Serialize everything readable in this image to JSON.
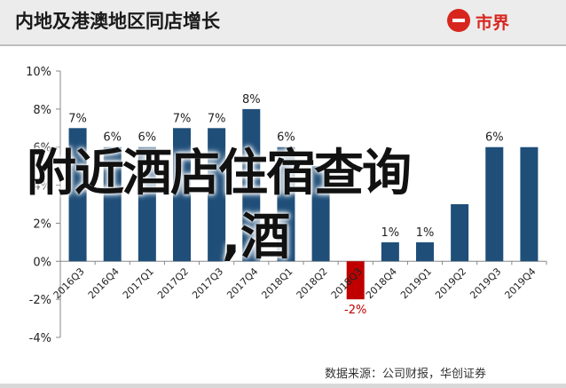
{
  "header": {
    "title": "内地及港澳地区同店增长",
    "brand": "市界"
  },
  "overlay": {
    "line1": "附近酒店住宿查询",
    "line2": ",酒"
  },
  "source": "数据来源：公司财报，华创证券",
  "colors": {
    "bar_positive": "#1f4e79",
    "bar_negative": "#c00000",
    "negative_label": "#c00000",
    "brand": "#d7261e"
  },
  "chart_data": {
    "type": "bar",
    "categories": [
      "2016Q3",
      "2016Q4",
      "2017Q1",
      "2017Q2",
      "2017Q3",
      "2017Q4",
      "2018Q1",
      "2018Q2",
      "2018Q3",
      "2018Q4",
      "2019Q1",
      "2019Q2",
      "2019Q3",
      "2019Q4"
    ],
    "values": [
      7,
      6,
      6,
      7,
      7,
      8,
      6,
      5,
      -2,
      1,
      1,
      3,
      6,
      6
    ],
    "data_labels": [
      "7%",
      "6%",
      "6%",
      "7%",
      "7%",
      "8%",
      "6%",
      "",
      "-2%",
      "1%",
      "1%",
      "",
      "6%",
      ""
    ],
    "y_ticks": [
      "10%",
      "8%",
      "6%",
      "4%",
      "2%",
      "0%",
      "-2%",
      "-4%"
    ],
    "ylim": [
      -4,
      10
    ],
    "grid": false,
    "title": "内地及港澳地区同店增长",
    "xlabel": "",
    "ylabel": ""
  }
}
